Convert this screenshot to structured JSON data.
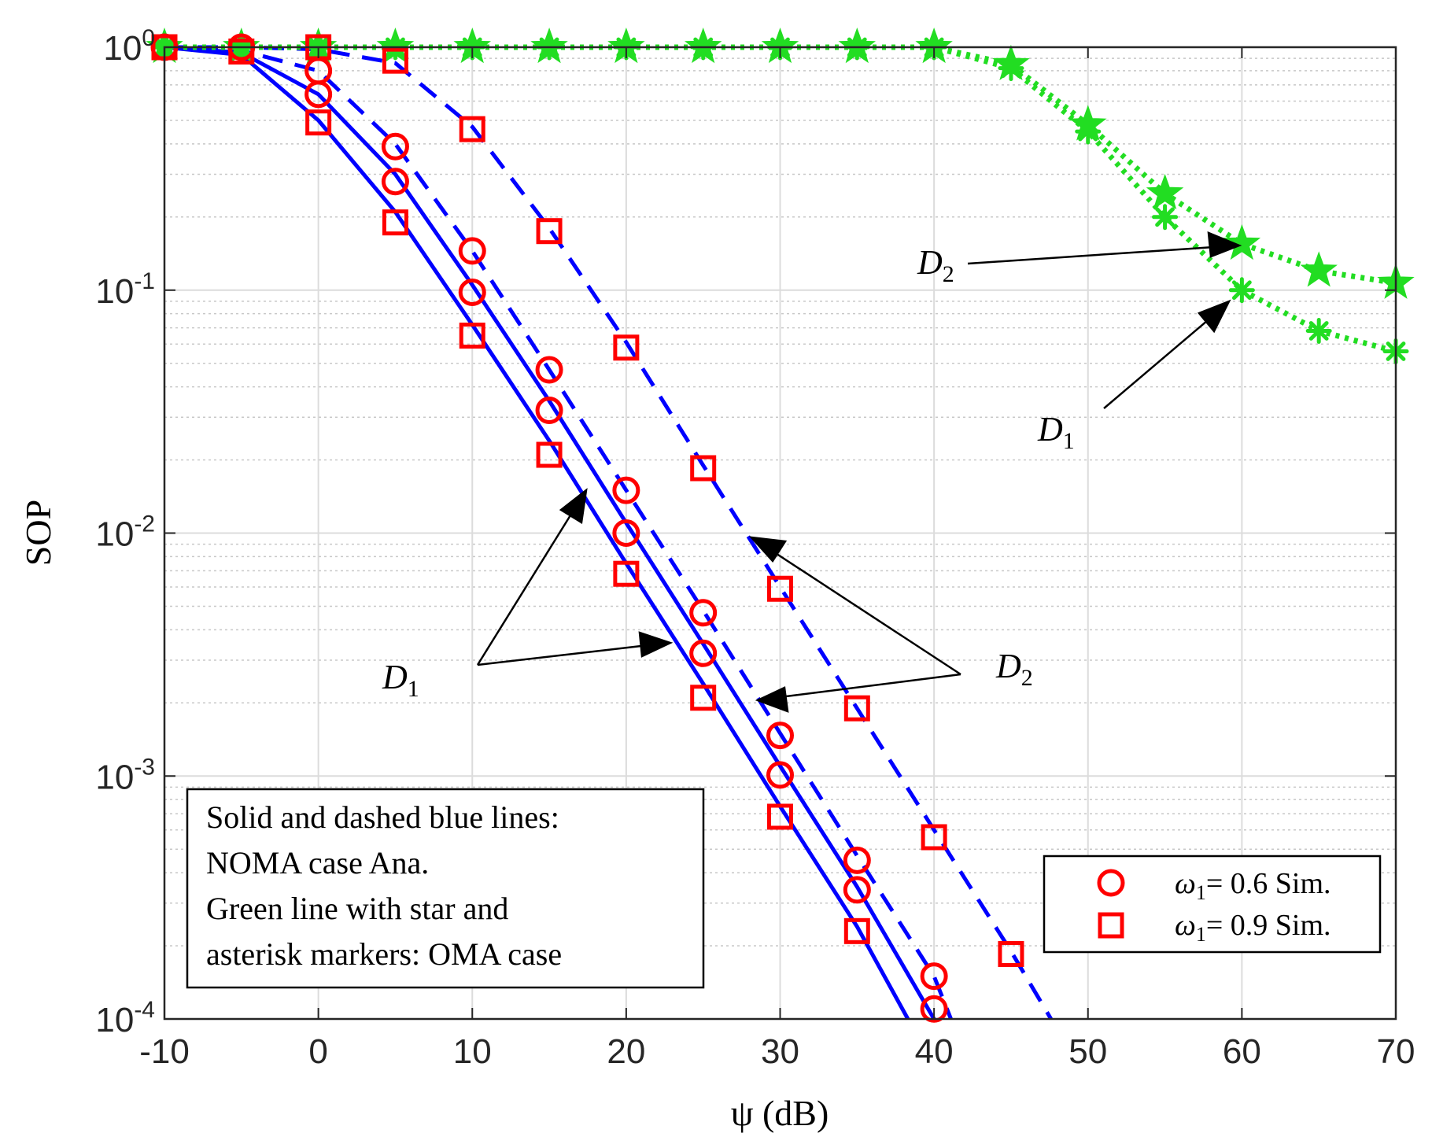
{
  "chart_data": {
    "type": "line",
    "xlabel": "ψ (dB)",
    "ylabel": "SOP",
    "xlim": [
      -10,
      70
    ],
    "ylim": [
      0.0001,
      1
    ],
    "yscale": "log",
    "grid": true,
    "x_ticks": [
      "-10",
      "0",
      "10",
      "20",
      "30",
      "40",
      "50",
      "60",
      "70"
    ],
    "y_ticks": [
      {
        "base": "10",
        "exp": "0"
      },
      {
        "base": "10",
        "exp": "-1"
      },
      {
        "base": "10",
        "exp": "-2"
      },
      {
        "base": "10",
        "exp": "-3"
      },
      {
        "base": "10",
        "exp": "-4"
      }
    ],
    "lines": [
      {
        "name": "NOMA Ana. ω1=0.6 D1",
        "style": "solid",
        "color": "#0000ff",
        "x": [
          -10,
          -5,
          0,
          5,
          10,
          15,
          20,
          25,
          30,
          35,
          40
        ],
        "y": [
          1,
          0.95,
          0.64,
          0.3,
          0.105,
          0.035,
          0.011,
          0.0035,
          0.0011,
          0.00035,
          0.0001
        ]
      },
      {
        "name": "NOMA Ana. ω1=0.9 D1",
        "style": "solid",
        "color": "#0000ff",
        "x": [
          -10,
          -5,
          0,
          5,
          10,
          15,
          20,
          25,
          30,
          35,
          38.3
        ],
        "y": [
          1,
          0.93,
          0.5,
          0.21,
          0.072,
          0.024,
          0.0075,
          0.0024,
          0.00075,
          0.00024,
          0.0001
        ]
      },
      {
        "name": "NOMA Ana. ω1=0.6 D2",
        "style": "dashed",
        "color": "#0000ff",
        "x": [
          -10,
          -5,
          0,
          5,
          10,
          15,
          20,
          25,
          30,
          35,
          40,
          41.1
        ],
        "y": [
          1,
          0.97,
          0.8,
          0.4,
          0.145,
          0.047,
          0.015,
          0.0048,
          0.0015,
          0.00047,
          0.00015,
          0.0001
        ]
      },
      {
        "name": "NOMA Ana. ω1=0.9 D2",
        "style": "dashed",
        "color": "#0000ff",
        "x": [
          -10,
          -5,
          0,
          5,
          10,
          15,
          20,
          25,
          30,
          35,
          40,
          45,
          47.6
        ],
        "y": [
          1,
          1,
          0.98,
          0.86,
          0.47,
          0.18,
          0.061,
          0.019,
          0.006,
          0.0019,
          0.0006,
          0.00019,
          0.0001
        ]
      },
      {
        "name": "OMA D2 (star)",
        "style": "dotted",
        "color": "#22dd22",
        "marker": "star",
        "x": [
          -10,
          -5,
          0,
          5,
          10,
          15,
          20,
          25,
          30,
          35,
          40,
          45,
          50,
          55,
          60,
          65,
          70
        ],
        "y": [
          1,
          1,
          1,
          1,
          1,
          1,
          1,
          1,
          1,
          1,
          1,
          0.85,
          0.48,
          0.25,
          0.155,
          0.12,
          0.107
        ]
      },
      {
        "name": "OMA D1 (asterisk)",
        "style": "dotted",
        "color": "#22dd22",
        "marker": "asterisk",
        "x": [
          -10,
          -5,
          0,
          5,
          10,
          15,
          20,
          25,
          30,
          35,
          40,
          45,
          50,
          55,
          60,
          65,
          70
        ],
        "y": [
          1,
          1,
          1,
          1,
          1,
          1,
          1,
          1,
          1,
          1,
          1,
          0.82,
          0.45,
          0.2,
          0.1,
          0.068,
          0.056
        ]
      }
    ],
    "markers": [
      {
        "name": "ω1= 0.6 Sim.",
        "shape": "circle",
        "color": "#ff0000",
        "x": [
          -10,
          -5,
          0,
          0,
          5,
          5,
          10,
          10,
          15,
          15,
          20,
          20,
          25,
          25,
          30,
          30,
          35,
          35,
          40,
          40
        ],
        "y": [
          1,
          1,
          0.8,
          0.64,
          0.39,
          0.28,
          0.145,
          0.098,
          0.047,
          0.032,
          0.015,
          0.01,
          0.0047,
          0.0032,
          0.00147,
          0.00101,
          0.00045,
          0.00034,
          0.00015,
          0.00011
        ]
      },
      {
        "name": "ω1= 0.9 Sim.",
        "shape": "square",
        "color": "#ff0000",
        "x": [
          -10,
          -5,
          0,
          0,
          5,
          5,
          10,
          10,
          15,
          15,
          20,
          20,
          25,
          25,
          30,
          30,
          35,
          35,
          40,
          45
        ],
        "y": [
          1,
          0.96,
          1,
          0.49,
          0.88,
          0.19,
          0.46,
          0.065,
          0.175,
          0.021,
          0.058,
          0.0068,
          0.0185,
          0.0021,
          0.0059,
          0.00068,
          0.0019,
          0.00023,
          0.00056,
          0.000185
        ]
      }
    ],
    "legend": {
      "position": "bottom-right",
      "entries": [
        {
          "shape": "circle",
          "label": "= 0.6 Sim."
        },
        {
          "shape": "square",
          "label": "= 0.9 Sim."
        }
      ],
      "symbol": "ω",
      "symbol_sub": "1"
    },
    "annotations": {
      "d1_letter": "D",
      "d1_sub": "1",
      "d2_letter": "D",
      "d2_sub": "2"
    },
    "note": {
      "position": "bottom-left",
      "lines": [
        "Solid and dashed blue lines:",
        "NOMA case Ana.",
        "Green line with star and",
        "asterisk markers: OMA case"
      ]
    }
  }
}
